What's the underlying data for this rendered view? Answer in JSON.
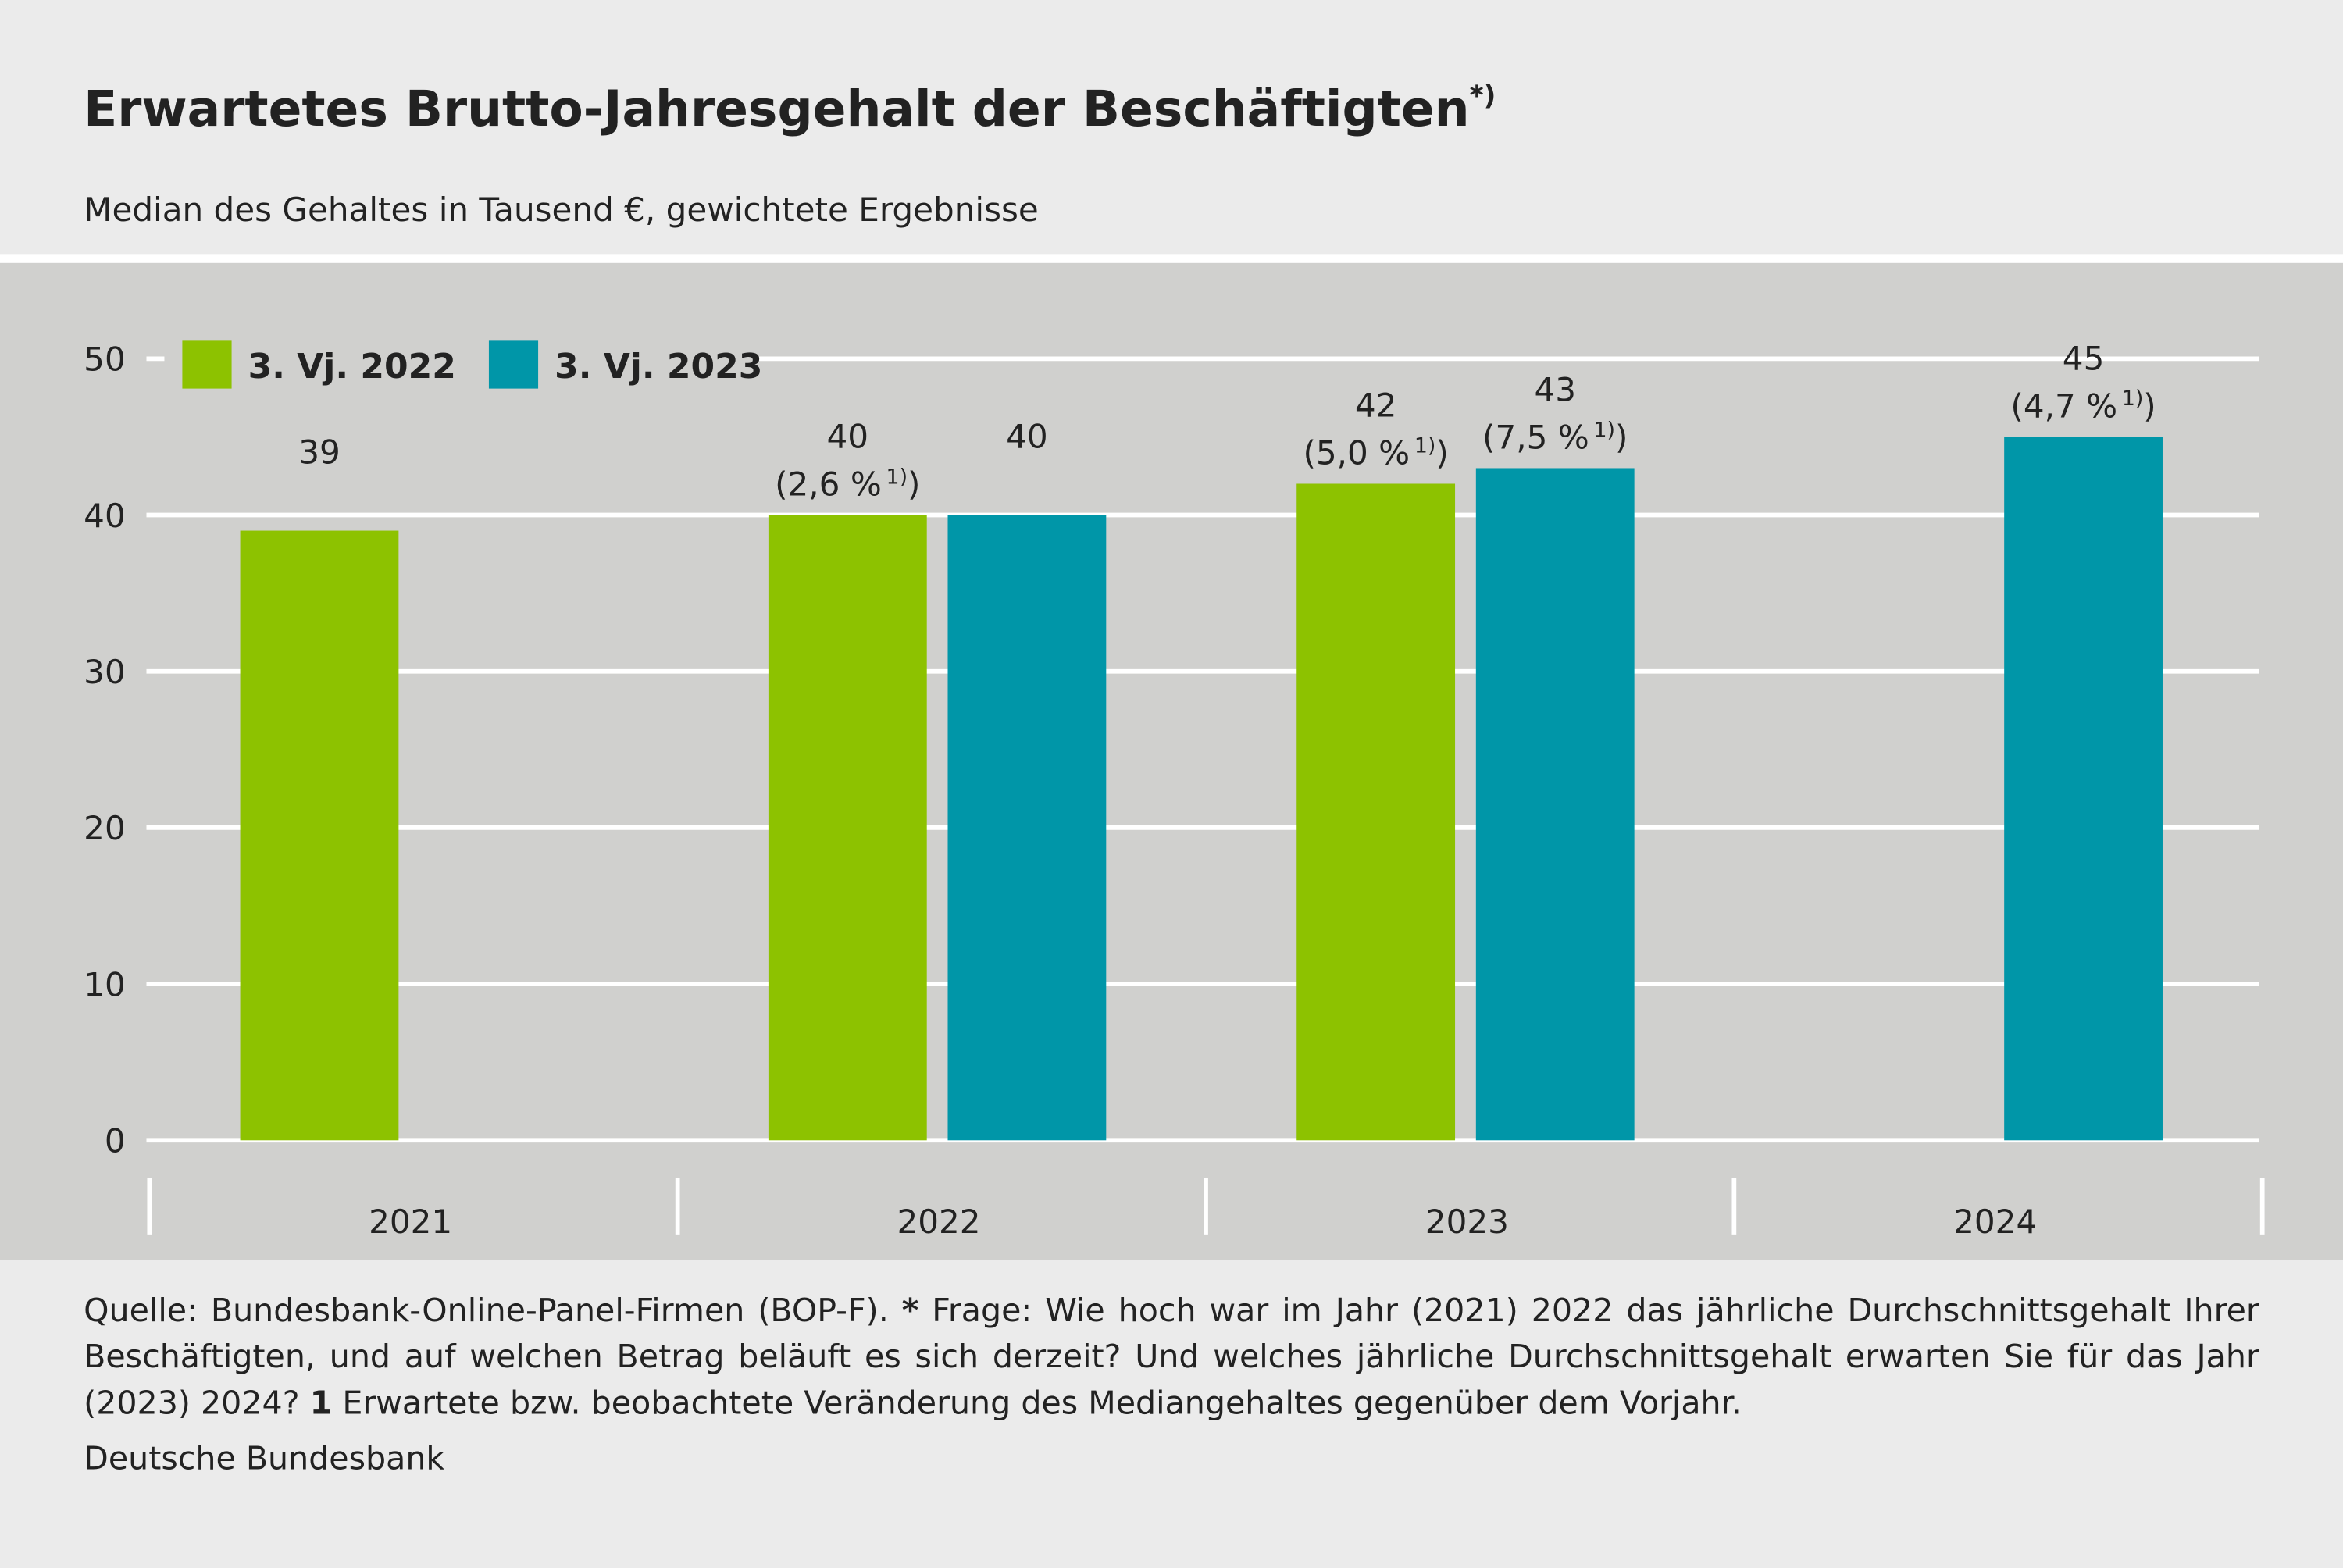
{
  "chart_data": {
    "type": "bar",
    "title": "Erwartetes Brutto-Jahresgehalt der Beschäftigten",
    "title_note": "*)",
    "subtitle": "Median des Gehaltes in Tausend €, gewichtete Ergebnisse",
    "categories": [
      "2021",
      "2022",
      "2023",
      "2024"
    ],
    "series": [
      {
        "name": "3. Vj. 2022",
        "color": "#8dc200",
        "values": [
          39,
          40,
          42,
          null
        ],
        "annotations": [
          null,
          [
            "(2,6 %",
            "1)",
            ")"
          ],
          [
            "(5,0 %",
            "1)",
            ")"
          ],
          null
        ]
      },
      {
        "name": "3. Vj. 2023",
        "color": "#0096a8",
        "values": [
          null,
          40,
          43,
          45
        ],
        "annotations": [
          null,
          null,
          [
            "(7,5 %",
            "1)",
            ")"
          ],
          [
            "(4,7 %",
            "1)",
            ")"
          ]
        ]
      }
    ],
    "ylim": [
      0,
      50
    ],
    "yticks": [
      0,
      10,
      20,
      30,
      40,
      50
    ],
    "grid": true,
    "footnote": [
      {
        "text": "Quelle: Bundesbank-Online-Panel-Firmen (BOP-F). "
      },
      {
        "text": "*",
        "bold": true
      },
      {
        "text": " Frage: Wie hoch war im Jahr (2021) 2022 das jährliche Durchschnittsgehalt Ihrer Beschäftigten, und auf welchen Betrag beläuft es sich derzeit? Und welches jährliche Durchschnittsgehalt erwarten Sie für das Jahr (2023) 2024? "
      },
      {
        "text": "1",
        "bold": true
      },
      {
        "text": " Erwartete bzw. beobachtete Veränderung des Mediangehaltes gegenüber dem Vorjahr."
      }
    ],
    "credit": "Deutsche Bundesbank"
  }
}
